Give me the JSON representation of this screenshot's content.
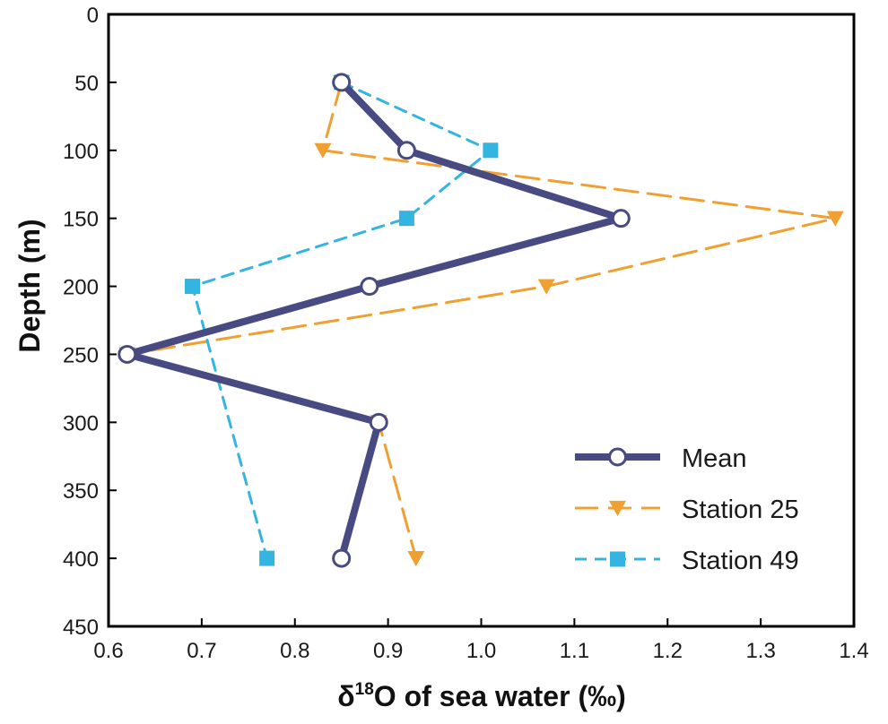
{
  "chart_data": {
    "type": "line",
    "orientation": "depth-profile",
    "xlabel": "of sea water (‰)",
    "xlabel_parts": {
      "delta": "δ",
      "superscript": "18",
      "element": "O",
      "rest": " of sea water (‰)"
    },
    "ylabel": "Depth (m)",
    "xlim": [
      0.6,
      1.4
    ],
    "ylim": [
      0,
      450
    ],
    "y_inverted": true,
    "x_ticks": [
      "0.6",
      "0.7",
      "0.8",
      "0.9",
      "1.0",
      "1.1",
      "1.2",
      "1.3",
      "1.4"
    ],
    "y_ticks": [
      "0",
      "50",
      "100",
      "150",
      "200",
      "250",
      "300",
      "350",
      "400",
      "450"
    ],
    "grid": false,
    "legend_position": "bottom-right",
    "series": [
      {
        "name": "Mean",
        "color": "#484a82",
        "line_style": "solid",
        "marker": "open-circle",
        "points": [
          {
            "x": 0.85,
            "y": 50
          },
          {
            "x": 0.92,
            "y": 100
          },
          {
            "x": 1.15,
            "y": 150
          },
          {
            "x": 0.88,
            "y": 200
          },
          {
            "x": 0.62,
            "y": 250
          },
          {
            "x": 0.89,
            "y": 300
          },
          {
            "x": 0.85,
            "y": 400
          }
        ]
      },
      {
        "name": "Station 25",
        "color": "#f0a030",
        "line_style": "dashed",
        "marker": "down-triangle",
        "points": [
          {
            "x": 0.85,
            "y": 50
          },
          {
            "x": 0.83,
            "y": 100
          },
          {
            "x": 1.38,
            "y": 150
          },
          {
            "x": 1.07,
            "y": 200
          },
          {
            "x": 0.62,
            "y": 250
          },
          {
            "x": 0.89,
            "y": 300
          },
          {
            "x": 0.93,
            "y": 400
          }
        ]
      },
      {
        "name": "Station 49",
        "color": "#34b4e0",
        "line_style": "dashed",
        "marker": "square",
        "points": [
          {
            "x": 0.85,
            "y": 50
          },
          {
            "x": 1.01,
            "y": 100
          },
          {
            "x": 0.92,
            "y": 150
          },
          {
            "x": 0.69,
            "y": 200
          },
          {
            "x": 0.77,
            "y": 400
          }
        ]
      }
    ]
  }
}
